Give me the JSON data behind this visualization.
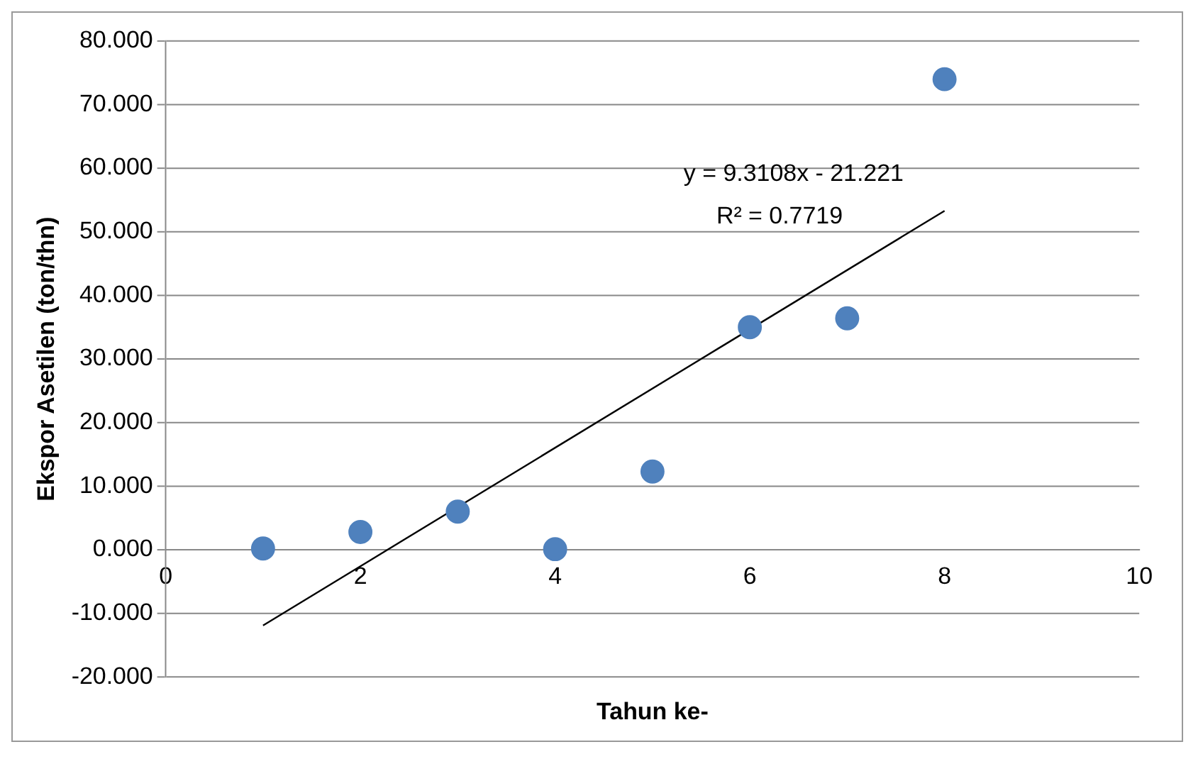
{
  "chart_data": {
    "type": "scatter",
    "xlabel": "Tahun ke-",
    "ylabel": "Ekspor Asetilen (ton/thn)",
    "xlim": [
      0,
      10
    ],
    "xticks": [
      0,
      2,
      4,
      6,
      8,
      10
    ],
    "ylim": [
      -20,
      80
    ],
    "yticks": [
      {
        "value": -20,
        "label": "-20.000"
      },
      {
        "value": -10,
        "label": "-10.000"
      },
      {
        "value": 0,
        "label": "0.000"
      },
      {
        "value": 10,
        "label": "10.000"
      },
      {
        "value": 20,
        "label": "20.000"
      },
      {
        "value": 30,
        "label": "30.000"
      },
      {
        "value": 40,
        "label": "40.000"
      },
      {
        "value": 50,
        "label": "50.000"
      },
      {
        "value": 60,
        "label": "60.000"
      },
      {
        "value": 70,
        "label": "70.000"
      },
      {
        "value": 80,
        "label": "80.000"
      }
    ],
    "grid": "y",
    "marker": "circle",
    "series": [
      {
        "color": "#4f81bd",
        "x": [
          1,
          2,
          3,
          4,
          5,
          6,
          7,
          8
        ],
        "values": [
          0.2,
          2.8,
          6.0,
          0.1,
          12.3,
          35.0,
          36.4,
          74.0
        ]
      },
      {
        "type": "line",
        "color": "#000000",
        "marker": "none",
        "line_style": "solid",
        "x": [
          1,
          8
        ],
        "values": [
          -11.9,
          53.3
        ]
      }
    ],
    "annotations": [
      "y = 9.3108x - 21.221",
      "R² = 0.7719"
    ]
  }
}
